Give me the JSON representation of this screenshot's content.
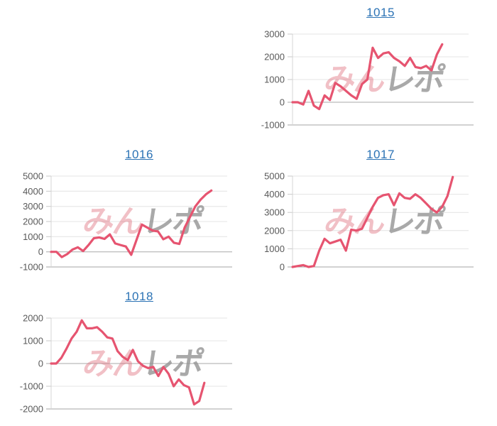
{
  "page": {
    "background": "#ffffff"
  },
  "charts": {
    "style": {
      "line_color": "#e65470",
      "grid_color": "#e4e4e4",
      "zero_axis_color": "#aaaaaa",
      "bottom_axis_color": "#a6a6a6",
      "side_axis_color": "#d4d4d4",
      "tick_mark_color": "#c9c9c9",
      "tick_label_color": "#595959",
      "title_color": "#2c73b5"
    },
    "watermark": {
      "pink_text": "みん",
      "gray_text": "レポ",
      "pink_color": "rgba(222, 105, 118, 0.42)",
      "gray_color": "rgba(148, 148, 148, 0.8)"
    }
  },
  "chart_data": [
    {
      "type": "line",
      "title": "1015",
      "ylim": [
        -1000,
        3000
      ],
      "yticks": [
        3000,
        2000,
        1000,
        0,
        -1000
      ],
      "grid": true,
      "legend": "none",
      "x_fraction": 0.85,
      "values": [
        0,
        0,
        -100,
        500,
        -150,
        -300,
        300,
        100,
        850,
        700,
        500,
        300,
        150,
        800,
        1000,
        2400,
        1950,
        2150,
        2200,
        1950,
        1800,
        1600,
        1950,
        1550,
        1500,
        1600,
        1400,
        2100,
        2550
      ]
    },
    {
      "type": "line",
      "title": "1016",
      "ylim": [
        -1000,
        5000
      ],
      "yticks": [
        5000,
        4000,
        3000,
        2000,
        1000,
        0,
        -1000
      ],
      "grid": true,
      "legend": "none",
      "x_fraction": 0.91,
      "values": [
        0,
        0,
        -350,
        -150,
        150,
        300,
        50,
        450,
        900,
        950,
        850,
        1150,
        550,
        450,
        350,
        -200,
        800,
        1800,
        1600,
        1400,
        1350,
        830,
        1000,
        600,
        520,
        1600,
        2300,
        3000,
        3450,
        3800,
        4050
      ]
    },
    {
      "type": "line",
      "title": "1017",
      "ylim": [
        0,
        5000
      ],
      "yticks": [
        5000,
        4000,
        3000,
        2000,
        1000,
        0
      ],
      "grid": true,
      "legend": "none",
      "x_fraction": 0.91,
      "values": [
        0,
        50,
        100,
        0,
        50,
        900,
        1550,
        1300,
        1400,
        1500,
        900,
        2050,
        2000,
        2100,
        2700,
        3300,
        3800,
        3950,
        4000,
        3400,
        4050,
        3800,
        3750,
        4000,
        3800,
        3500,
        3200,
        3000,
        3300,
        3900,
        4950
      ]
    },
    {
      "type": "line",
      "title": "1018",
      "ylim": [
        -2000,
        2000
      ],
      "yticks": [
        2000,
        1000,
        0,
        -1000,
        -2000
      ],
      "grid": true,
      "legend": "none",
      "x_fraction": 0.87,
      "values": [
        0,
        0,
        250,
        650,
        1100,
        1400,
        1900,
        1550,
        1550,
        1600,
        1400,
        1150,
        1100,
        550,
        300,
        150,
        600,
        100,
        -100,
        -200,
        -150,
        -550,
        -150,
        -450,
        -1000,
        -700,
        -950,
        -1050,
        -1800,
        -1650,
        -850
      ]
    }
  ]
}
